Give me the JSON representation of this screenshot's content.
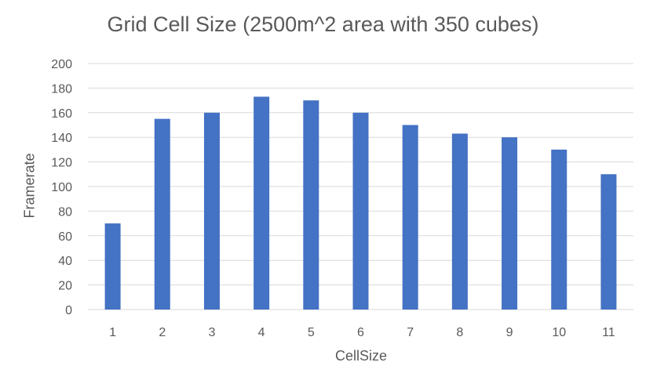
{
  "chart_data": {
    "type": "bar",
    "title": "Grid Cell Size (2500m^2 area with 350 cubes)",
    "xlabel": "CellSize",
    "ylabel": "Framerate",
    "categories": [
      "1",
      "2",
      "3",
      "4",
      "5",
      "6",
      "7",
      "8",
      "9",
      "10",
      "11"
    ],
    "values": [
      70,
      155,
      160,
      173,
      170,
      160,
      150,
      143,
      140,
      130,
      110
    ],
    "ylim": [
      0,
      200
    ],
    "yticks": [
      "0",
      "20",
      "40",
      "60",
      "80",
      "100",
      "120",
      "140",
      "160",
      "180",
      "200"
    ],
    "grid": true,
    "legend": "none",
    "bar_color": "#4472C4",
    "grid_color": "#D9D9D9",
    "text_color": "#595959"
  }
}
